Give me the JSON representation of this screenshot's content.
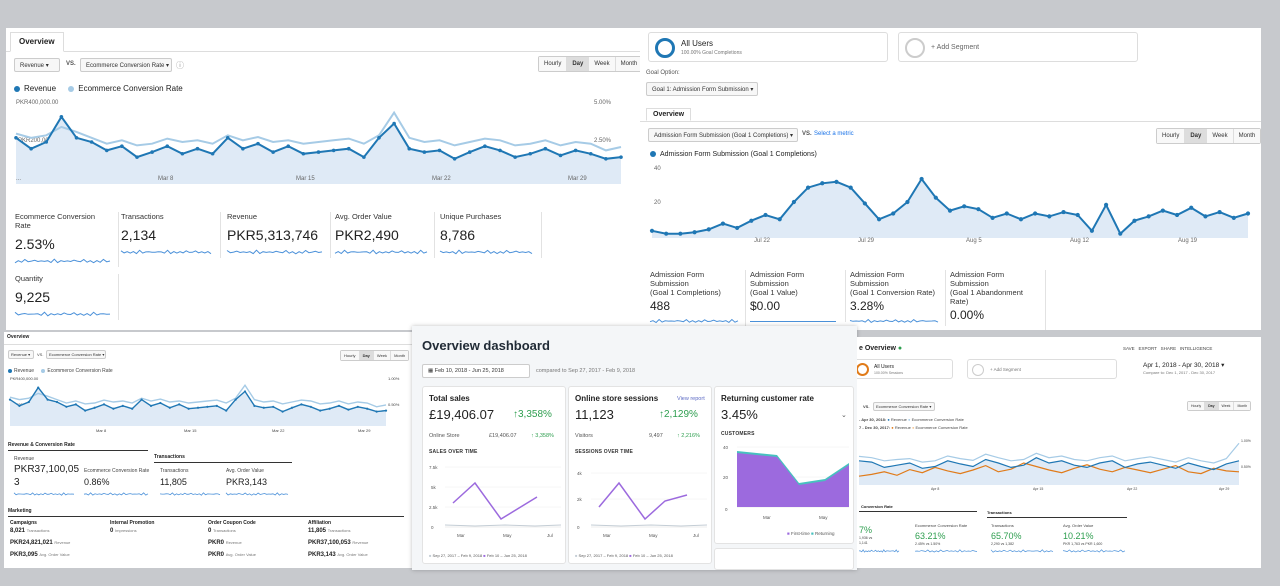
{
  "p1": {
    "tab": "Overview",
    "metric_select": "Revenue",
    "vs": "VS.",
    "compare_select": "Ecommerce Conversion Rate",
    "periods": [
      "Hourly",
      "Day",
      "Week",
      "Month"
    ],
    "legend": [
      "Revenue",
      "Ecommerce Conversion Rate"
    ],
    "y_left": [
      "PKR400,000.00",
      "PKR200,000.00"
    ],
    "y_right": [
      "5.00%",
      "2.50%"
    ],
    "x_ticks": [
      "...",
      "Mar 8",
      "Mar 15",
      "Mar 22",
      "Mar 29"
    ],
    "metrics": [
      {
        "label": "Ecommerce Conversion Rate",
        "value": "2.53%"
      },
      {
        "label": "Transactions",
        "value": "2,134"
      },
      {
        "label": "Revenue",
        "value": "PKR5,313,746"
      },
      {
        "label": "Avg. Order Value",
        "value": "PKR2,490"
      },
      {
        "label": "Unique Purchases",
        "value": "8,786"
      },
      {
        "label": "Quantity",
        "value": "9,225"
      }
    ]
  },
  "p2": {
    "segment": "All Users",
    "segment_sub": "100.00% Goal Completions",
    "add_segment": "+ Add Segment",
    "goal_label": "Goal Option:",
    "goal_select": "Goal 1: Admission Form Submission",
    "tab": "Overview",
    "metric_select": "Admission Form Submission (Goal 1 Completions)",
    "vs": "VS.",
    "select_metric": "Select a metric",
    "periods": [
      "Hourly",
      "Day",
      "Week",
      "Month"
    ],
    "legend": "Admission Form Submission (Goal 1 Completions)",
    "y_ticks": [
      "40",
      "20"
    ],
    "x_ticks": [
      "Jul 22",
      "Jul 29",
      "Aug 5",
      "Aug 12",
      "Aug 19"
    ],
    "metrics": [
      {
        "l1": "Admission Form Submission",
        "l2": "(Goal 1 Completions)",
        "value": "488"
      },
      {
        "l1": "Admission Form Submission",
        "l2": "(Goal 1 Value)",
        "value": "$0.00"
      },
      {
        "l1": "Admission Form Submission",
        "l2": "(Goal 1 Conversion Rate)",
        "value": "3.28%"
      },
      {
        "l1": "Admission Form Submission",
        "l2": "(Goal 1 Abandonment Rate)",
        "value": "0.00%"
      }
    ]
  },
  "p3": {
    "tab": "Overview",
    "metric_select": "Revenue",
    "vs": "VS.",
    "compare_select": "Ecommerce Conversion Rate",
    "periods": [
      "Hourly",
      "Day",
      "Week",
      "Month"
    ],
    "legend": [
      "Revenue",
      "Ecommerce Conversion Rate"
    ],
    "y_left": [
      "PKR400,000.00",
      "PKR200,000.00"
    ],
    "y_right": [
      "1.00%",
      "0.50%"
    ],
    "x_ticks": [
      "Mar 8",
      "Mar 15",
      "Mar 22",
      "Mar 29"
    ],
    "section1": "Revenue & Conversion Rate",
    "section1b": "Transactions",
    "revenue_label": "Revenue",
    "revenue_value": "PKR37,100,05",
    "revenue_value2": "3",
    "ecr_label": "Ecommerce Conversion Rate",
    "ecr_value": "0.86%",
    "trans_label": "Transactions",
    "trans_value": "11,805",
    "aov_label": "Avg. Order Value",
    "aov_value": "PKR3,143",
    "marketing": "Marketing",
    "mk_heads": [
      "Campaigns",
      "Internal Promotion",
      "Order Coupon Code",
      "Affiliation"
    ],
    "mk_row1": [
      {
        "v": "8,021",
        "u": "Transactions"
      },
      {
        "v": "0",
        "u": "Impressions"
      },
      {
        "v": "0",
        "u": "Transactions"
      },
      {
        "v": "11,805",
        "u": "Transactions"
      }
    ],
    "mk_row2": [
      {
        "v": "PKR24,821,021",
        "u": "Revenue"
      },
      {
        "v": "PKR0",
        "u": "Revenue"
      },
      {
        "v": "PKR37,100,053",
        "u": "Revenue"
      }
    ],
    "mk_row3": [
      {
        "v": "PKR3,095",
        "u": "Avg. Order Value"
      },
      {
        "v": "PKR0",
        "u": "Avg. Order Value"
      },
      {
        "v": "PKR3,143",
        "u": "Avg. Order Value"
      }
    ]
  },
  "p4": {
    "title": "Overview dashboard",
    "date_range": "Feb 10, 2018 - Jun 25, 2018",
    "compared": "compared to Sep 27, 2017 - Feb 9, 2018",
    "sales": {
      "title": "Total sales",
      "value": "£19,406.07",
      "change": "↑3,358%",
      "row_label": "Online Store",
      "row_value": "£19,406.07",
      "row_change": "↑ 3,358%",
      "chart_title": "SALES OVER TIME",
      "y_ticks": [
        "7.5k",
        "5k",
        "2.5k",
        "0"
      ],
      "x_ticks": [
        "Mar",
        "May",
        "Jul"
      ],
      "legend_prev": "Sep 27, 2017 – Feb 9, 2018",
      "legend_cur": "Feb 10 – Jun 25, 2018"
    },
    "sessions": {
      "title": "Online store sessions",
      "link": "View report",
      "value": "11,123",
      "change": "↑2,129%",
      "row_label": "Visitors",
      "row_value": "9,497",
      "row_change": "↑ 2,216%",
      "chart_title": "SESSIONS OVER TIME",
      "y_ticks": [
        "4k",
        "2k",
        "0"
      ],
      "x_ticks": [
        "Mar",
        "May",
        "Jul"
      ],
      "legend_prev": "Sep 27, 2017 – Feb 9, 2018",
      "legend_cur": "Feb 10 – Jun 25, 2018"
    },
    "returning": {
      "title": "Returning customer rate",
      "value": "3.45%",
      "chart_title": "CUSTOMERS",
      "y_ticks": [
        "40",
        "20",
        "0"
      ],
      "x_ticks": [
        "Mar",
        "May"
      ],
      "legend_first": "First-time",
      "legend_returning": "Returning"
    }
  },
  "p5": {
    "title": "e Overview",
    "actions": [
      "SAVE",
      "EXPORT",
      "SHARE",
      "INTELLIGENCE"
    ],
    "segment": "All Users",
    "segment_sub": "100.00% Sessions",
    "add_segment": "+ Add Segment",
    "date_range": "Apr 1, 2018 - Apr 30, 2018",
    "compare_range": "Compare to: Dec 1, 2017 - Dec 30, 2017",
    "vs": "VS.",
    "compare_select": "Ecommerce Conversion Rate",
    "periods": [
      "Hourly",
      "Day",
      "Week",
      "Month"
    ],
    "legend_row1": [
      "- Apr 30, 2018:",
      "Revenue",
      "Ecommerce Conversion Rate"
    ],
    "legend_row2": [
      "7 - Dec 30, 2017:",
      "Revenue",
      "Ecommerce Conversion Rate"
    ],
    "y_right": [
      "1.00%",
      "0.50%"
    ],
    "x_ticks": [
      "Apr 8",
      "Apr 15",
      "Apr 22",
      "Apr 29"
    ],
    "section1": "Conversion Rate",
    "section2": "Transactions",
    "m1_value": "7%",
    "m1_sub": "1,936 vs",
    "m1_sub2": "1,141",
    "ecr_label": "Ecommerce Conversion Rate",
    "ecr_value": "63.21%",
    "ecr_sub": "2.45% vs 1.50%",
    "trans_label": "Transactions",
    "trans_value": "65.70%",
    "trans_sub": "2,290 vs 1,382",
    "aov_label": "Avg. Order Value",
    "aov_value": "10.21%",
    "aov_sub": "PKR 1,763 vs PKR 1,600"
  },
  "colors": {
    "ga_blue": "#1f77b4",
    "ga_light_blue": "#a6cbe6",
    "ga_area": "#dfeaf6",
    "shopify_purple": "#9c6ade",
    "shopify_teal": "#47c1bf",
    "green": "#2e9e4f",
    "orange": "#e07b1a"
  }
}
